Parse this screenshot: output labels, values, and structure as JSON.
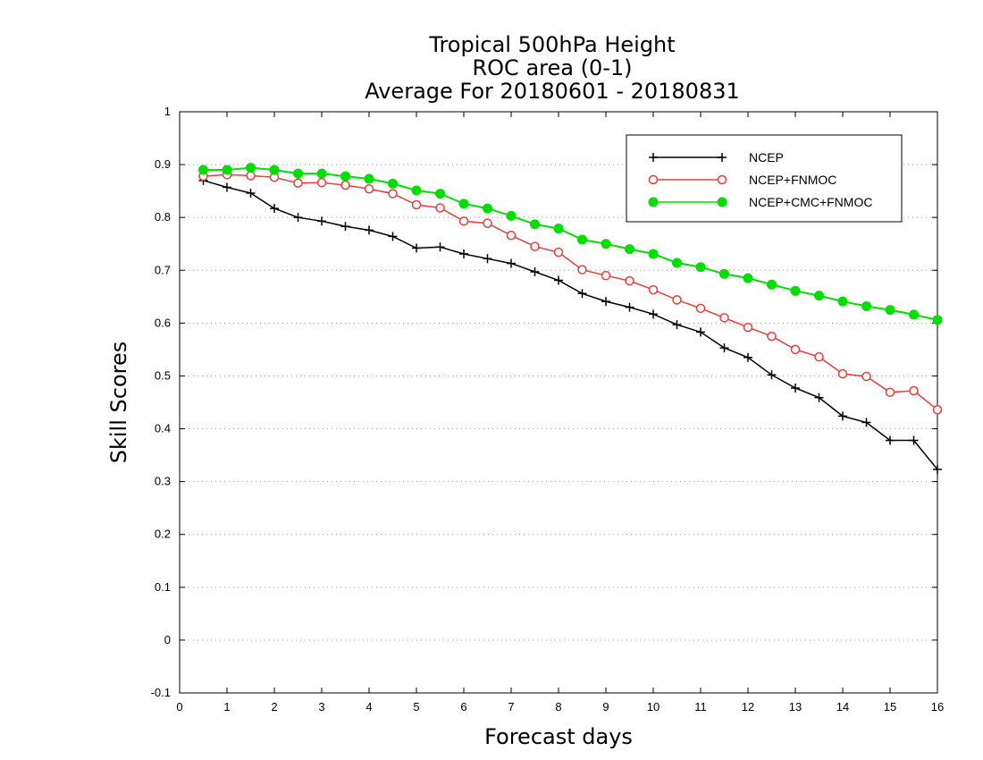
{
  "chart_data": {
    "type": "line",
    "title": [
      "Tropical 500hPa Height",
      "ROC area (0-1)",
      "Average For 20180601 - 20180831"
    ],
    "xlabel": "Forecast days",
    "ylabel": "Skill Scores",
    "xlim": [
      0,
      16
    ],
    "ylim": [
      -0.1,
      1
    ],
    "x_ticks": [
      "0",
      "1",
      "2",
      "3",
      "4",
      "5",
      "6",
      "7",
      "8",
      "9",
      "10",
      "11",
      "12",
      "13",
      "14",
      "15",
      "16"
    ],
    "y_ticks": [
      "-0.1",
      "0",
      "0.1",
      "0.2",
      "0.3",
      "0.4",
      "0.5",
      "0.6",
      "0.7",
      "0.8",
      "0.9",
      "1"
    ],
    "grid": "horizontal dotted",
    "legend_position": "top-right",
    "x": [
      0.5,
      1.0,
      1.5,
      2.0,
      2.5,
      3.0,
      3.5,
      4.0,
      4.5,
      5.0,
      5.5,
      6.0,
      6.5,
      7.0,
      7.5,
      8.0,
      8.5,
      9.0,
      9.5,
      10.0,
      10.5,
      11.0,
      11.5,
      12.0,
      12.5,
      13.0,
      13.5,
      14.0,
      14.5,
      15.0,
      15.5,
      16.0
    ],
    "series": [
      {
        "name": "NCEP",
        "color": "#000000",
        "marker": "plus",
        "values": [
          0.87,
          0.857,
          0.846,
          0.817,
          0.8,
          0.793,
          0.783,
          0.776,
          0.764,
          0.742,
          0.744,
          0.731,
          0.722,
          0.713,
          0.697,
          0.681,
          0.656,
          0.641,
          0.63,
          0.617,
          0.597,
          0.583,
          0.553,
          0.535,
          0.502,
          0.477,
          0.459,
          0.424,
          0.412,
          0.378,
          0.378,
          0.323
        ]
      },
      {
        "name": "NCEP+FNMOC",
        "color": "#ee3b3b",
        "marker": "open-circle",
        "values": [
          0.878,
          0.881,
          0.879,
          0.876,
          0.865,
          0.866,
          0.861,
          0.854,
          0.845,
          0.824,
          0.818,
          0.793,
          0.789,
          0.766,
          0.745,
          0.734,
          0.701,
          0.69,
          0.68,
          0.663,
          0.644,
          0.628,
          0.61,
          0.592,
          0.575,
          0.55,
          0.536,
          0.504,
          0.499,
          0.469,
          0.472,
          0.436
        ]
      },
      {
        "name": "NCEP+CMC+FNMOC",
        "color": "#00dd00",
        "marker": "filled-circle",
        "values": [
          0.89,
          0.89,
          0.894,
          0.89,
          0.883,
          0.883,
          0.878,
          0.873,
          0.864,
          0.851,
          0.845,
          0.826,
          0.817,
          0.803,
          0.787,
          0.779,
          0.758,
          0.75,
          0.74,
          0.731,
          0.714,
          0.706,
          0.693,
          0.685,
          0.673,
          0.661,
          0.652,
          0.641,
          0.632,
          0.625,
          0.616,
          0.606
        ]
      }
    ]
  }
}
